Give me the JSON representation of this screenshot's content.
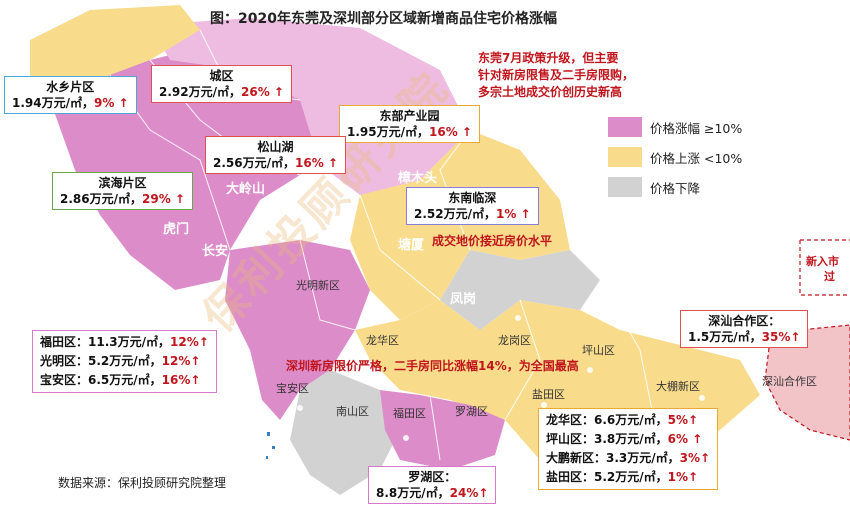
{
  "title": "图：2020年东莞及深圳部分区域新增商品住宅价格涨幅",
  "colors": {
    "rise_high": "#dc8cc8",
    "rise_low": "#f8dc8c",
    "decline": "#d2d2d2",
    "accent_red": "#c0151c"
  },
  "notes": {
    "dongguan": [
      "东莞7月政策升级，但主要",
      "针对新房限售及二手房限购，",
      "多宗土地成交价创历史新高"
    ],
    "dongnan": "成交地价接近房价水平",
    "shenzhen": "深圳新房限价严格，二手房同比涨幅14%，为全国最高",
    "partial": [
      "新入市",
      "过"
    ]
  },
  "legend": [
    {
      "label": "价格涨幅 ≥10%",
      "color": "#dc8cc8"
    },
    {
      "label": "价格上涨 <10%",
      "color": "#f8dc8c"
    },
    {
      "label": "价格下降",
      "color": "#d2d2d2"
    }
  ],
  "boxes": {
    "shuixiang": {
      "name": "水乡片区",
      "price": "1.94万元/㎡，",
      "change": "9% ↑"
    },
    "chengqu": {
      "name": "城区",
      "price": "2.92万元/㎡，",
      "change": "26% ↑"
    },
    "dongbu": {
      "name": "东部产业园",
      "price": "1.95万元/㎡，",
      "change": "16% ↑"
    },
    "songshanhu": {
      "name": "松山湖",
      "price": "2.56万元/㎡，",
      "change": "16% ↑"
    },
    "binhai": {
      "name": "滨海片区",
      "price": "2.86万元/㎡，",
      "change": "29% ↑"
    },
    "dongnan": {
      "name": "东南临深",
      "price": "2.52万元/㎡，",
      "change": "1% ↑"
    },
    "shenshan": {
      "name": "深汕合作区：",
      "price": "1.5万元/㎡，",
      "change": "35%↑"
    },
    "luohu": {
      "name": "罗湖区：",
      "price": "8.8万元/㎡，",
      "change": "24%↑"
    },
    "west": [
      {
        "name": "福田区：",
        "price": "11.3万元/㎡，",
        "change": "12%↑"
      },
      {
        "name": "光明区：",
        "price": "5.2万元/㎡，",
        "change": "12%↑"
      },
      {
        "name": "宝安区：",
        "price": "6.5万元/㎡，",
        "change": "16%↑"
      }
    ],
    "east": [
      {
        "name": "龙华区：",
        "price": "6.6万元/㎡，",
        "change": "5%↑"
      },
      {
        "name": "坪山区：",
        "price": "3.8万元/㎡，",
        "change": "6% ↑"
      },
      {
        "name": "大鹏新区：",
        "price": "3.3万元/㎡，",
        "change": "3%↑"
      },
      {
        "name": "盐田区：",
        "price": "5.2万元/㎡，",
        "change": "1%↑"
      }
    ]
  },
  "map_labels": {
    "guangming": "光明新区",
    "longhua": "龙华区",
    "longgang": "龙岗区",
    "pingshan": "坪山区",
    "dapeng": "大棚新区",
    "yantian": "盐田区",
    "baoan": "宝安区",
    "nanshan": "南山区",
    "futian": "福田区",
    "luohu": "罗湖区",
    "shenshan": "深汕合作区",
    "dalingshan": "大岭山",
    "humen": "虎门",
    "changan": "长安",
    "zhangmutou": "樟木头",
    "tangxia": "塘厦",
    "fenggang": "凤岗"
  },
  "source": "数据来源：保利投顾研究院整理",
  "watermark": "保利投顾研究院"
}
